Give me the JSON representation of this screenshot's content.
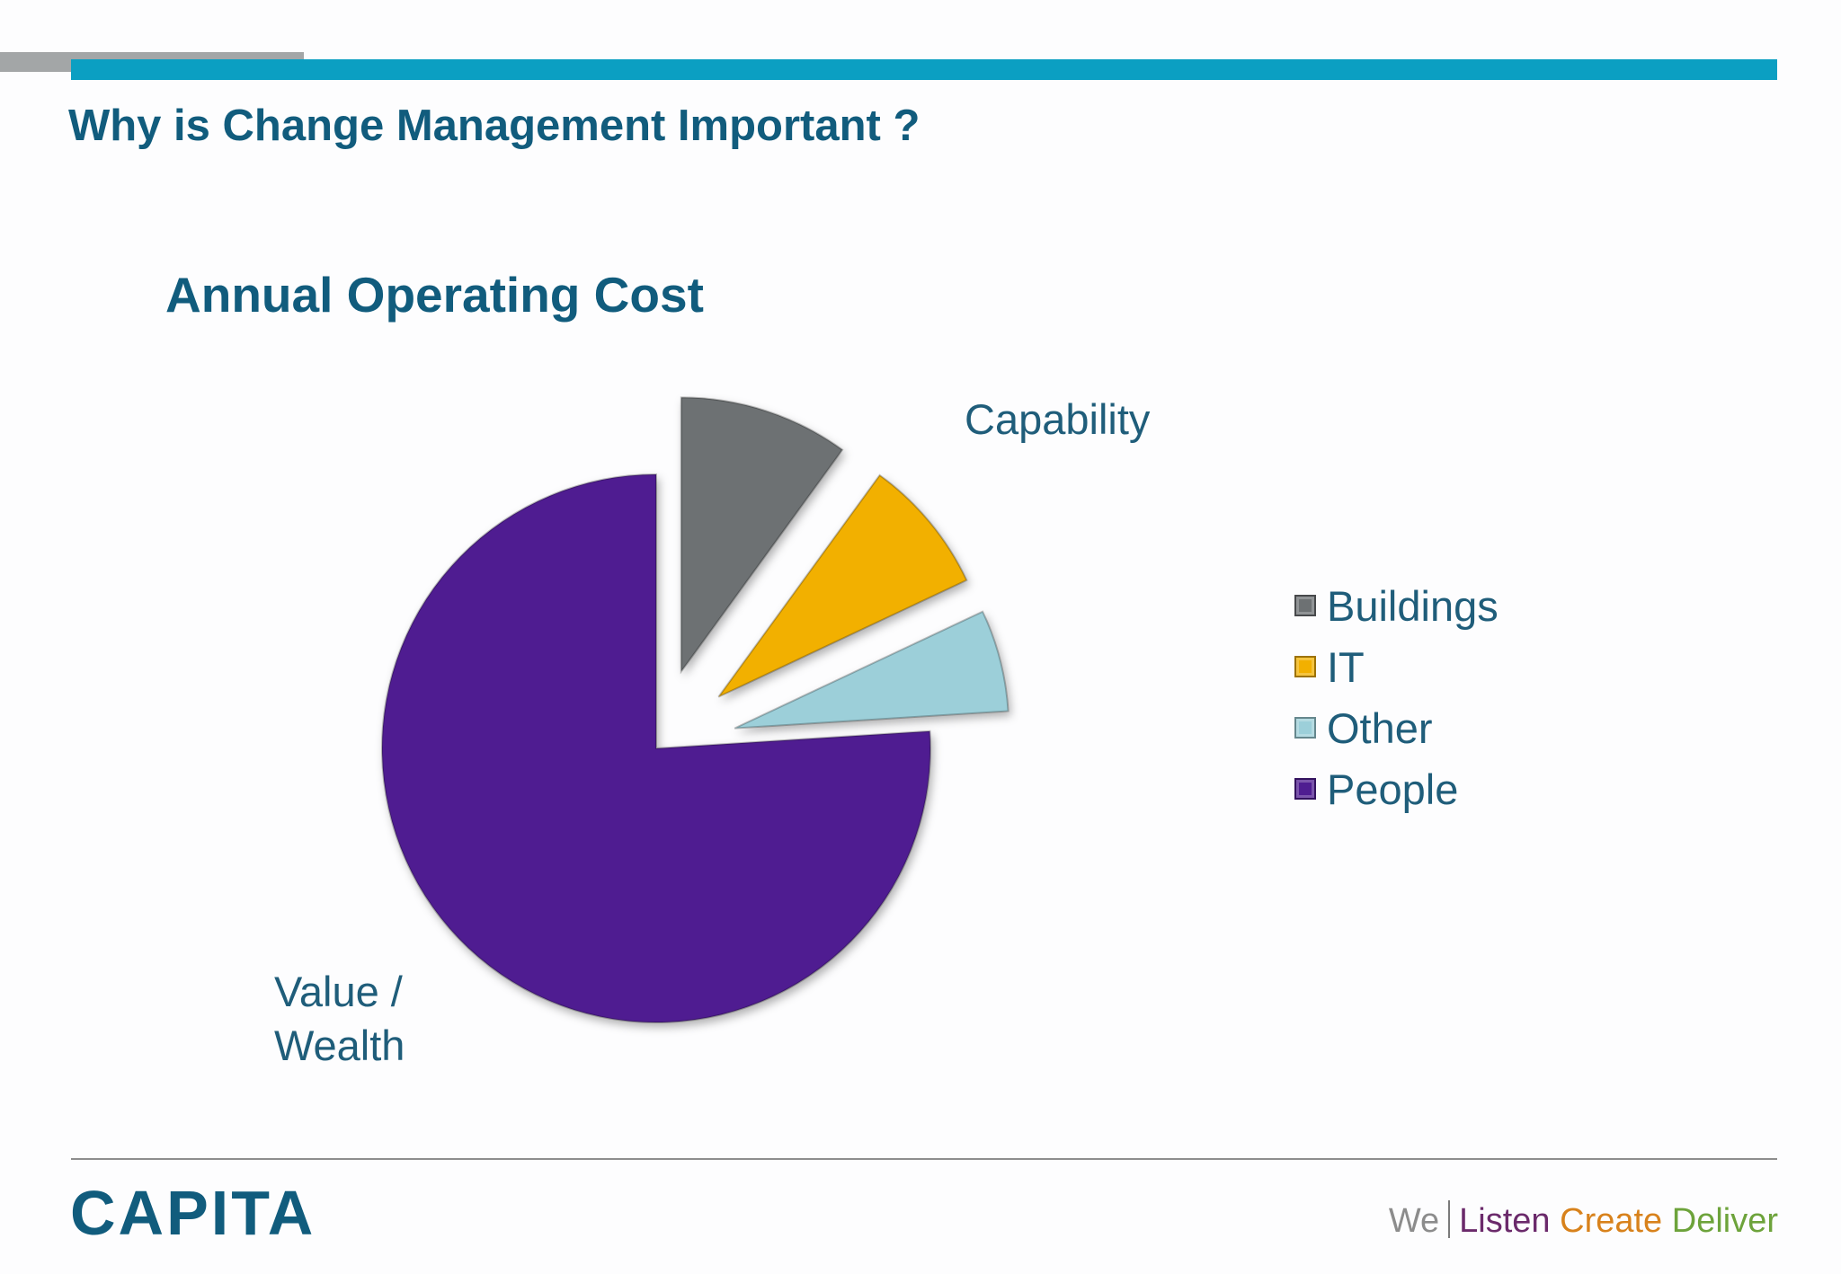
{
  "slide": {
    "title": "Why is Change Management Important ?"
  },
  "annotations": {
    "capability": "Capability",
    "value_line1": "Value /",
    "value_line2": "Wealth"
  },
  "chart_data": {
    "type": "pie",
    "title": "Annual Operating Cost",
    "labels": [
      "Buildings",
      "IT",
      "Other",
      "People"
    ],
    "values": [
      10,
      8,
      6,
      76
    ],
    "colors": [
      "#6d7173",
      "#f2b000",
      "#9ccfd9",
      "#4f1d91"
    ],
    "exploded": [
      true,
      true,
      true,
      false
    ],
    "legend": "right"
  },
  "footer": {
    "logo": "CAPITA",
    "tagline_we": "We",
    "tagline_listen": "Listen",
    "tagline_create": "Create",
    "tagline_deliver": "Deliver"
  }
}
